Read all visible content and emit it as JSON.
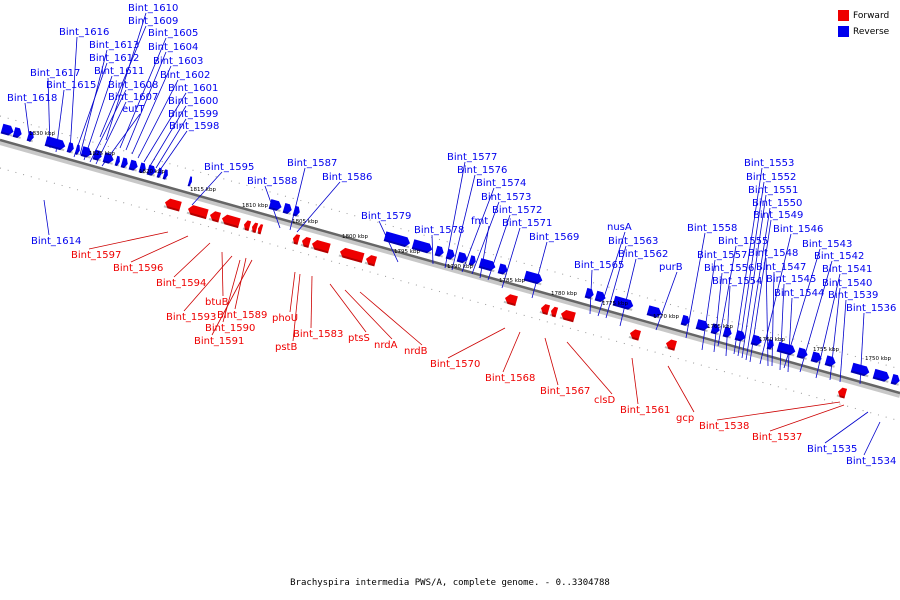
{
  "caption": "Brachyspira intermedia PWS/A, complete genome. - 0..3304788",
  "legend": [
    {
      "label": "Forward",
      "color": "#ee0000"
    },
    {
      "label": "Reverse",
      "color": "#0000ee"
    }
  ],
  "colors": {
    "forward": "#ee0000",
    "reverse": "#0000ee",
    "leader_forward": "#cc0000",
    "leader_reverse": "#0000cc",
    "axis": "#888888"
  },
  "scale_labels": [
    "1830 kbp",
    "1825 kbp",
    "1820 kbp",
    "1815 kbp",
    "1810 kbp",
    "1805 kbp",
    "1800 kbp",
    "1795 kbp",
    "1790 kbp",
    "1785 kbp",
    "1780 kbp",
    "1775 kbp",
    "1770 kbp",
    "1765 kbp",
    "1760 kbp",
    "1755 kbp",
    "1750 kbp"
  ],
  "reverse_genes": [
    "Bint_1610",
    "Bint_1609",
    "Bint_1616",
    "Bint_1605",
    "Bint_1613",
    "Bint_1604",
    "Bint_1612",
    "Bint_1603",
    "Bint_1617",
    "Bint_1611",
    "Bint_1602",
    "Bint_1615",
    "Bint_1608",
    "Bint_1601",
    "Bint_1618",
    "Bint_1607",
    "Bint_1600",
    "eutT",
    "Bint_1599",
    "Bint_1598",
    "Bint_1614",
    "Bint_1595",
    "Bint_1588",
    "Bint_1587",
    "Bint_1586",
    "Bint_1579",
    "Bint_1578",
    "Bint_1577",
    "Bint_1576",
    "Bint_1574",
    "Bint_1573",
    "fmt",
    "Bint_1572",
    "Bint_1571",
    "Bint_1569",
    "nusA",
    "Bint_1563",
    "Bint_1565",
    "Bint_1562",
    "purB",
    "Bint_1553",
    "Bint_1552",
    "Bint_1551",
    "Bint_1550",
    "Bint_1549",
    "Bint_1558",
    "Bint_1546",
    "Bint_1555",
    "Bint_1543",
    "Bint_1557",
    "Bint_1548",
    "Bint_1542",
    "Bint_1556",
    "Bint_1547",
    "Bint_1541",
    "Bint_1554",
    "Bint_1545",
    "Bint_1540",
    "Bint_1544",
    "Bint_1539",
    "Bint_1536",
    "Bint_1535",
    "Bint_1534"
  ],
  "forward_genes": [
    "Bint_1597",
    "Bint_1596",
    "Bint_1594",
    "btuB",
    "Bint_1593",
    "Bint_1589",
    "Bint_1590",
    "Bint_1591",
    "phoU",
    "pstB",
    "Bint_1583",
    "ptsS",
    "nrdA",
    "nrdB",
    "Bint_1570",
    "Bint_1568",
    "Bint_1567",
    "clsD",
    "Bint_1561",
    "gcp",
    "Bint_1538",
    "Bint_1537"
  ]
}
